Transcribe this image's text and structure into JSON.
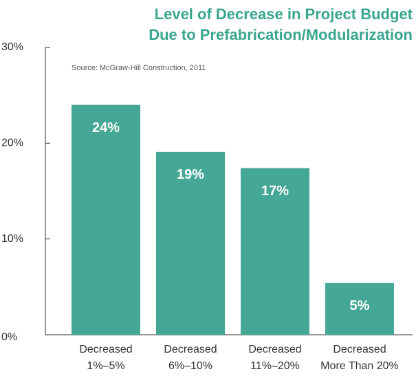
{
  "chart_data": {
    "type": "bar",
    "title": [
      "Level of Decrease in Project Budget",
      "Due to Prefabrication/Modularization"
    ],
    "subtitle": "Source: McGraw-Hill Construction, 2011",
    "categories": [
      [
        "Decreased",
        "1%–5%"
      ],
      [
        "Decreased",
        "6%–10%"
      ],
      [
        "Decreased",
        "11%–20%"
      ],
      [
        "Decreased",
        "More Than 20%"
      ]
    ],
    "values": [
      24,
      19.1,
      17.4,
      5.4
    ],
    "value_labels": [
      "24%",
      "19%",
      "17%",
      "5%"
    ],
    "color": "#45a795",
    "ylim": [
      0,
      30
    ],
    "yticks": [
      {
        "value": 0,
        "label": "0%"
      },
      {
        "value": 10,
        "label": "10%"
      },
      {
        "value": 20,
        "label": "20%"
      },
      {
        "value": 30,
        "label": "30%"
      }
    ],
    "grid": false
  }
}
